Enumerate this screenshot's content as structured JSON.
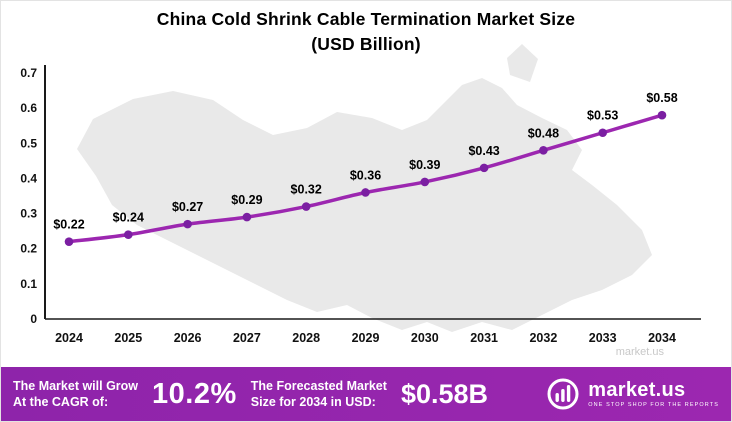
{
  "title_line1": "China Cold Shrink Cable Termination Market Size",
  "title_line2": "(USD Billion)",
  "watermark": "market.us",
  "chart_data": {
    "type": "line",
    "title": "China Cold Shrink Cable Termination Market Size (USD Billion)",
    "categories": [
      "2024",
      "2025",
      "2026",
      "2027",
      "2028",
      "2029",
      "2030",
      "2031",
      "2032",
      "2033",
      "2034"
    ],
    "values": [
      0.22,
      0.24,
      0.27,
      0.29,
      0.32,
      0.36,
      0.39,
      0.43,
      0.48,
      0.53,
      0.58
    ],
    "point_labels": [
      "$0.22",
      "$0.24",
      "$0.27",
      "$0.29",
      "$0.32",
      "$0.36",
      "$0.39",
      "$0.43",
      "$0.48",
      "$0.53",
      "$0.58"
    ],
    "xlabel": "",
    "ylabel": "",
    "ylim": [
      0,
      0.7
    ],
    "yticks": [
      0,
      0.1,
      0.2,
      0.3,
      0.4,
      0.5,
      0.6,
      0.7
    ],
    "ytick_labels": [
      "0",
      "0.1",
      "0.2",
      "0.3",
      "0.4",
      "0.5",
      "0.6",
      "0.7"
    ],
    "line_color": "#9C27B0",
    "point_color": "#7B1FA2",
    "grid": false,
    "legend": "none"
  },
  "footer": {
    "bg_color": "#8E24AA",
    "cagr_label_line1": "The Market will Grow",
    "cagr_label_line2": "At the CAGR of:",
    "cagr_value": "10.2%",
    "forecast_label_line1": "The Forecasted Market",
    "forecast_label_line2": "Size for 2034 in USD:",
    "forecast_value": "$0.58B",
    "brand": "market.us",
    "brand_tagline": "One Stop Shop For The Reports"
  }
}
